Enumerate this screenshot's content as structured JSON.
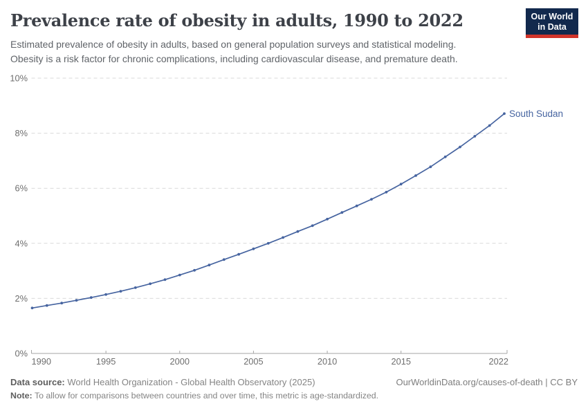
{
  "header": {
    "title": "Prevalence rate of obesity in adults, 1990 to 2022",
    "subtitle": [
      "Estimated prevalence of obesity in adults, based on general population surveys and statistical modeling.",
      "Obesity is a risk factor for chronic complications, including cardiovascular disease, and premature death."
    ],
    "logo": {
      "line1": "Our World",
      "line2": "in Data",
      "bg_color": "#12294d",
      "accent_color": "#d1342b"
    }
  },
  "chart_data": {
    "type": "line",
    "title": "Prevalence rate of obesity in adults, 1990 to 2022",
    "x": [
      1990,
      1991,
      1992,
      1993,
      1994,
      1995,
      1996,
      1997,
      1998,
      1999,
      2000,
      2001,
      2002,
      2003,
      2004,
      2005,
      2006,
      2007,
      2008,
      2009,
      2010,
      2011,
      2012,
      2013,
      2014,
      2015,
      2016,
      2017,
      2018,
      2019,
      2020,
      2021,
      2022
    ],
    "series": [
      {
        "name": "South Sudan",
        "color": "#4664a0",
        "values": [
          1.65,
          1.74,
          1.83,
          1.93,
          2.03,
          2.14,
          2.26,
          2.39,
          2.53,
          2.68,
          2.85,
          3.02,
          3.21,
          3.41,
          3.6,
          3.8,
          4.0,
          4.21,
          4.43,
          4.64,
          4.88,
          5.12,
          5.36,
          5.6,
          5.86,
          6.15,
          6.46,
          6.78,
          7.14,
          7.5,
          7.89,
          8.28,
          8.71
        ]
      }
    ],
    "xlim": [
      1990,
      2022
    ],
    "ylim": [
      0,
      10
    ],
    "x_ticks": [
      1990,
      1995,
      2000,
      2005,
      2010,
      2015,
      2022
    ],
    "y_ticks": [
      0,
      2,
      4,
      6,
      8,
      10
    ],
    "y_tick_labels": [
      "0%",
      "2%",
      "4%",
      "6%",
      "8%",
      "10%"
    ],
    "grid": "horizontal-dashed",
    "legend": "inline-end-label"
  },
  "footer": {
    "datasource_label": "Data source:",
    "datasource_text": "World Health Organization - Global Health Observatory (2025)",
    "attribution": "OurWorldinData.org/causes-of-death | CC BY",
    "note_label": "Note:",
    "note_text": "To allow for comparisons between countries and over time, this metric is age-standardized."
  }
}
